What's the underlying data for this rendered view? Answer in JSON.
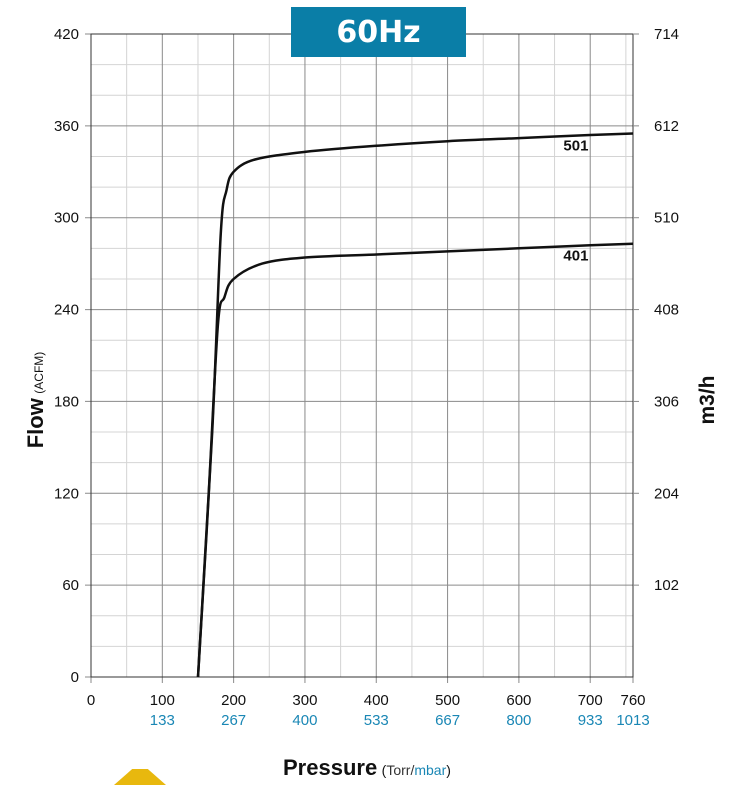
{
  "chart_data": {
    "type": "line",
    "title": "60Hz",
    "xlabel": "Pressure",
    "xlabel_unit_torr": "Torr",
    "xlabel_unit_sep": "/",
    "xlabel_unit_mbar": "mbar",
    "ylabel": "Flow",
    "ylabel_unit": "(ACFM)",
    "y2label": "m3/h",
    "xlim": [
      0,
      760
    ],
    "ylim": [
      0,
      420
    ],
    "grid": true,
    "x_ticks": [
      {
        "value": 0,
        "label": "0",
        "mbar": ""
      },
      {
        "value": 100,
        "label": "100",
        "mbar": "133"
      },
      {
        "value": 200,
        "label": "200",
        "mbar": "267"
      },
      {
        "value": 300,
        "label": "300",
        "mbar": "400"
      },
      {
        "value": 400,
        "label": "400",
        "mbar": "533"
      },
      {
        "value": 500,
        "label": "500",
        "mbar": "667"
      },
      {
        "value": 600,
        "label": "600",
        "mbar": "800"
      },
      {
        "value": 700,
        "label": "700",
        "mbar": "933"
      },
      {
        "value": 760,
        "label": "760",
        "mbar": "1013"
      }
    ],
    "y_ticks": [
      {
        "value": 0,
        "label": "0"
      },
      {
        "value": 60,
        "label": "60"
      },
      {
        "value": 120,
        "label": "120"
      },
      {
        "value": 180,
        "label": "180"
      },
      {
        "value": 240,
        "label": "240"
      },
      {
        "value": 300,
        "label": "300"
      },
      {
        "value": 360,
        "label": "360"
      },
      {
        "value": 420,
        "label": "420"
      }
    ],
    "y2_ticks": [
      {
        "value": 60,
        "label": "102"
      },
      {
        "value": 120,
        "label": "204"
      },
      {
        "value": 180,
        "label": "306"
      },
      {
        "value": 240,
        "label": "408"
      },
      {
        "value": 300,
        "label": "510"
      },
      {
        "value": 360,
        "label": "612"
      },
      {
        "value": 420,
        "label": "714"
      }
    ],
    "series": [
      {
        "name": "501",
        "label_at": {
          "x": 680,
          "y": 344
        },
        "points": [
          [
            150,
            0
          ],
          [
            170,
            160
          ],
          [
            182,
            290
          ],
          [
            190,
            318
          ],
          [
            200,
            330
          ],
          [
            230,
            338
          ],
          [
            300,
            343
          ],
          [
            400,
            347
          ],
          [
            500,
            350
          ],
          [
            600,
            352
          ],
          [
            700,
            354
          ],
          [
            760,
            355
          ]
        ]
      },
      {
        "name": "401",
        "label_at": {
          "x": 680,
          "y": 272
        },
        "points": [
          [
            150,
            0
          ],
          [
            165,
            120
          ],
          [
            178,
            230
          ],
          [
            187,
            248
          ],
          [
            200,
            260
          ],
          [
            240,
            270
          ],
          [
            300,
            274
          ],
          [
            400,
            276
          ],
          [
            500,
            278
          ],
          [
            600,
            280
          ],
          [
            700,
            282
          ],
          [
            760,
            283
          ]
        ]
      }
    ],
    "line_color": "#111111",
    "mbar_color": "#1a87b5",
    "title_bg": "#0a7ea7"
  }
}
